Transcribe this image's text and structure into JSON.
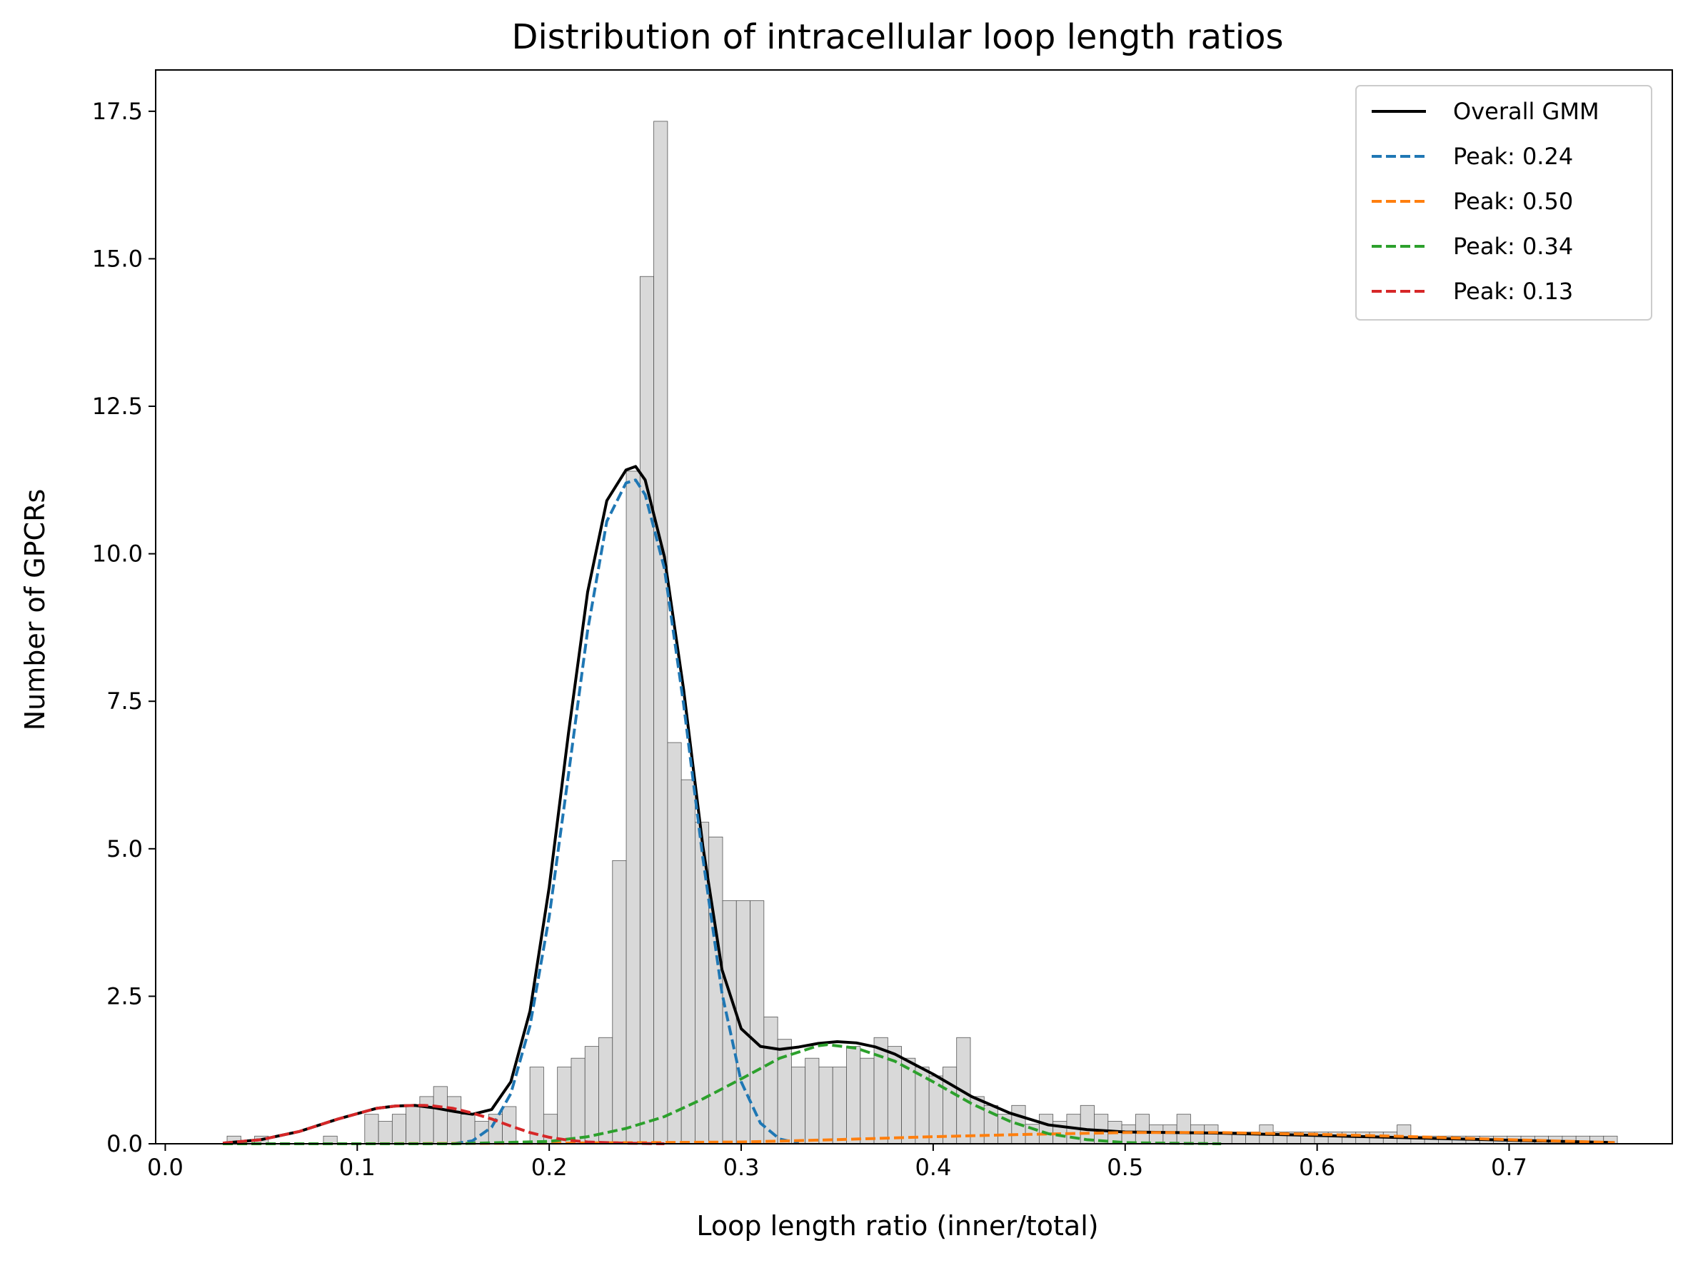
{
  "chart_data": {
    "type": "bar",
    "title": "Distribution of intracellular loop length ratios",
    "xlabel": "Loop length ratio (inner/total)",
    "ylabel": "Number of GPCRs",
    "xlim": [
      -0.005,
      0.785
    ],
    "ylim": [
      0,
      18.2
    ],
    "xticks": [
      0.0,
      0.1,
      0.2,
      0.3,
      0.4,
      0.5,
      0.6,
      0.7
    ],
    "xtick_labels": [
      "0.0",
      "0.1",
      "0.2",
      "0.3",
      "0.4",
      "0.5",
      "0.6",
      "0.7"
    ],
    "yticks": [
      0.0,
      2.5,
      5.0,
      7.5,
      10.0,
      12.5,
      15.0,
      17.5
    ],
    "ytick_labels": [
      "0.0",
      "2.5",
      "5.0",
      "7.5",
      "10.0",
      "12.5",
      "15.0",
      "17.5"
    ],
    "grid": false,
    "legend_position": "top-right",
    "histogram": {
      "bin_start": 0.0322,
      "bin_width": 0.00717,
      "color": "#d9d9d9",
      "edgecolor": "#555555",
      "values": [
        0.13,
        0,
        0.13,
        0,
        0,
        0,
        0,
        0.13,
        0,
        0,
        0.5,
        0.38,
        0.5,
        0.63,
        0.8,
        0.97,
        0.8,
        0.5,
        0.38,
        0.5,
        0.63,
        0,
        1.3,
        0.5,
        1.3,
        1.45,
        1.65,
        1.8,
        4.8,
        11.4,
        14.7,
        17.33,
        6.8,
        6.17,
        5.45,
        5.2,
        4.12,
        4.12,
        4.12,
        2.15,
        1.77,
        1.3,
        1.45,
        1.3,
        1.3,
        1.65,
        1.45,
        1.8,
        1.65,
        1.45,
        1.3,
        1.15,
        1.3,
        1.8,
        0.8,
        0.65,
        0.5,
        0.65,
        0.33,
        0.5,
        0.38,
        0.5,
        0.65,
        0.5,
        0.38,
        0.32,
        0.5,
        0.32,
        0.32,
        0.5,
        0.32,
        0.32,
        0.2,
        0.2,
        0.2,
        0.32,
        0.2,
        0.2,
        0.2,
        0.2,
        0.2,
        0.2,
        0.2,
        0.2,
        0.2,
        0.32,
        0.13,
        0.13,
        0.13,
        0.13,
        0.13,
        0.13,
        0.13,
        0.13,
        0.13,
        0.13,
        0.13,
        0.13,
        0.13,
        0.13,
        0.13
      ]
    },
    "series": [
      {
        "name": "Overall GMM",
        "color": "#000000",
        "style": "solid",
        "x": [
          0.03,
          0.05,
          0.07,
          0.09,
          0.11,
          0.12,
          0.13,
          0.14,
          0.15,
          0.16,
          0.17,
          0.18,
          0.19,
          0.2,
          0.21,
          0.22,
          0.23,
          0.24,
          0.245,
          0.25,
          0.26,
          0.27,
          0.28,
          0.29,
          0.3,
          0.31,
          0.32,
          0.33,
          0.34,
          0.35,
          0.36,
          0.37,
          0.38,
          0.4,
          0.42,
          0.44,
          0.46,
          0.48,
          0.5,
          0.55,
          0.6,
          0.65,
          0.7,
          0.755
        ],
        "y": [
          0.01,
          0.07,
          0.21,
          0.42,
          0.6,
          0.64,
          0.65,
          0.61,
          0.55,
          0.5,
          0.58,
          1.05,
          2.25,
          4.35,
          6.95,
          9.35,
          10.9,
          11.42,
          11.48,
          11.25,
          9.95,
          7.7,
          5.05,
          2.95,
          1.95,
          1.65,
          1.6,
          1.64,
          1.7,
          1.73,
          1.71,
          1.64,
          1.52,
          1.18,
          0.8,
          0.52,
          0.32,
          0.24,
          0.2,
          0.18,
          0.14,
          0.1,
          0.06,
          0.02
        ]
      },
      {
        "name": "Peak: 0.24",
        "color": "#1f77b4",
        "style": "dashed",
        "x": [
          0.15,
          0.16,
          0.17,
          0.18,
          0.19,
          0.2,
          0.21,
          0.22,
          0.23,
          0.24,
          0.245,
          0.25,
          0.26,
          0.27,
          0.28,
          0.29,
          0.3,
          0.31,
          0.32,
          0.33
        ],
        "y": [
          0,
          0.05,
          0.28,
          0.85,
          2.0,
          3.85,
          6.25,
          8.7,
          10.55,
          11.2,
          11.25,
          11.0,
          9.75,
          7.45,
          4.85,
          2.55,
          1.05,
          0.35,
          0.08,
          0.01
        ]
      },
      {
        "name": "Peak: 0.50",
        "color": "#ff7f0e",
        "style": "dashed",
        "x": [
          0.03,
          0.1,
          0.2,
          0.3,
          0.35,
          0.4,
          0.45,
          0.5,
          0.55,
          0.6,
          0.65,
          0.7,
          0.755
        ],
        "y": [
          0,
          0,
          0.01,
          0.03,
          0.07,
          0.12,
          0.16,
          0.19,
          0.19,
          0.16,
          0.12,
          0.07,
          0.02
        ]
      },
      {
        "name": "Peak: 0.34",
        "color": "#2ca02c",
        "style": "dashed",
        "x": [
          0.03,
          0.15,
          0.2,
          0.22,
          0.24,
          0.26,
          0.28,
          0.3,
          0.32,
          0.34,
          0.345,
          0.36,
          0.38,
          0.4,
          0.42,
          0.44,
          0.46,
          0.48,
          0.5,
          0.52,
          0.55
        ],
        "y": [
          0,
          0,
          0.04,
          0.12,
          0.26,
          0.46,
          0.76,
          1.1,
          1.45,
          1.66,
          1.68,
          1.62,
          1.4,
          1.05,
          0.68,
          0.38,
          0.17,
          0.07,
          0.02,
          0.01,
          0
        ]
      },
      {
        "name": "Peak: 0.13",
        "color": "#d62728",
        "style": "dashed",
        "x": [
          0.03,
          0.05,
          0.07,
          0.09,
          0.11,
          0.12,
          0.13,
          0.135,
          0.14,
          0.15,
          0.16,
          0.17,
          0.18,
          0.19,
          0.2,
          0.21,
          0.22,
          0.24,
          0.26
        ],
        "y": [
          0.01,
          0.07,
          0.21,
          0.42,
          0.6,
          0.64,
          0.65,
          0.65,
          0.64,
          0.6,
          0.52,
          0.42,
          0.3,
          0.19,
          0.11,
          0.06,
          0.03,
          0.01,
          0
        ]
      }
    ]
  }
}
